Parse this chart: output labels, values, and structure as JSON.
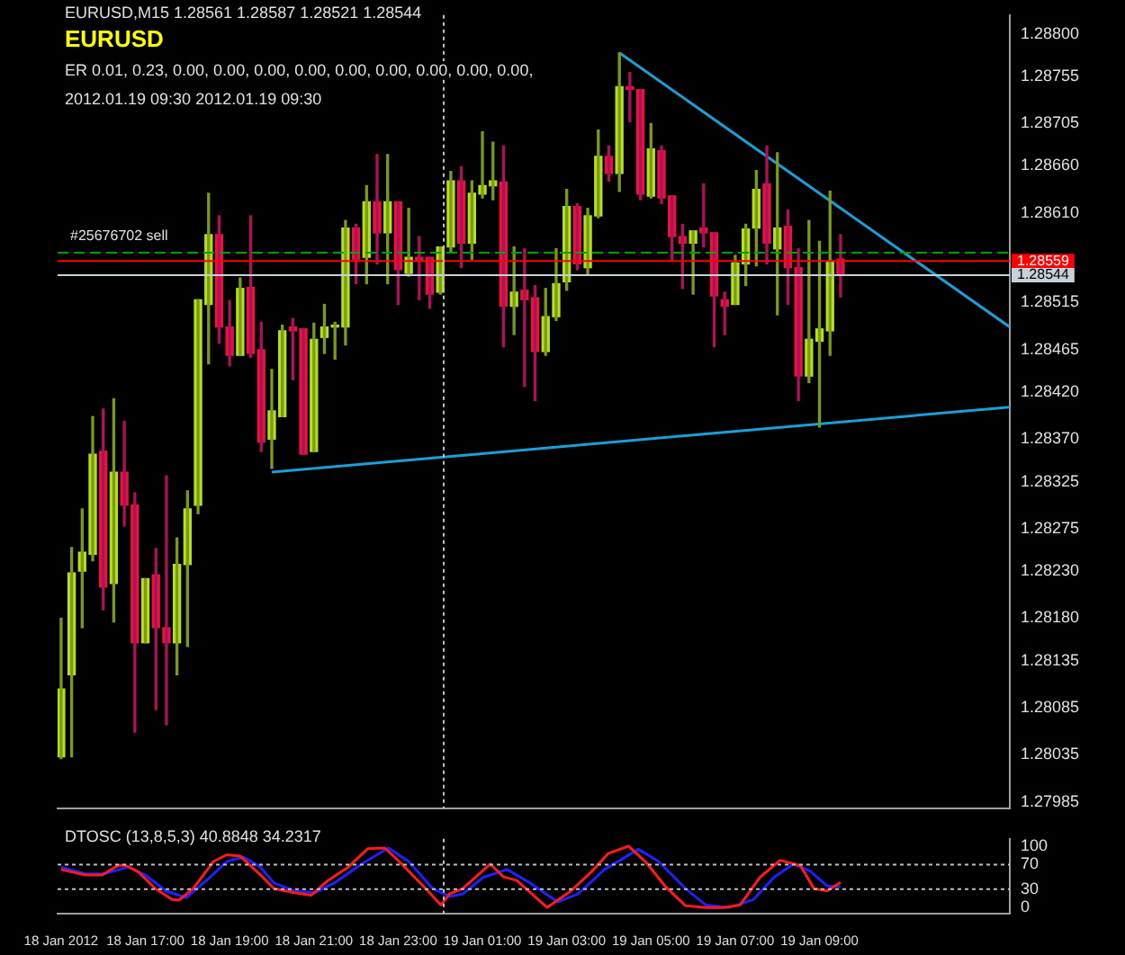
{
  "chart_data": [
    {
      "type": "candlestick",
      "title": "EURUSD,M15  1.28561 1.28587 1.28521 1.28544",
      "annotations": [
        "EURUSD",
        "ER 0.01, 0.23, 0.00, 0.00, 0.00, 0.00, 0.00, 0.00, 0.00, 0.00, 0.00,",
        "2012.01.19 09:30   2012.01.19 09:30"
      ],
      "x": [
        "2012-01-18T15:00",
        "2012-01-18T15:15",
        "2012-01-18T15:30",
        "2012-01-18T15:45",
        "2012-01-18T16:00",
        "2012-01-18T16:15",
        "2012-01-18T16:30",
        "2012-01-18T16:45",
        "2012-01-18T17:00",
        "2012-01-18T17:15",
        "2012-01-18T17:30",
        "2012-01-18T17:45",
        "2012-01-18T18:00",
        "2012-01-18T18:15",
        "2012-01-18T18:30",
        "2012-01-18T18:45",
        "2012-01-18T19:00",
        "2012-01-18T19:15",
        "2012-01-18T19:30",
        "2012-01-18T19:45",
        "2012-01-18T20:00",
        "2012-01-18T20:15",
        "2012-01-18T20:30",
        "2012-01-18T20:45",
        "2012-01-18T21:00",
        "2012-01-18T21:15",
        "2012-01-18T21:30",
        "2012-01-18T21:45",
        "2012-01-18T22:00",
        "2012-01-18T22:15",
        "2012-01-18T22:30",
        "2012-01-18T22:45",
        "2012-01-18T23:00",
        "2012-01-18T23:15",
        "2012-01-18T23:30",
        "2012-01-18T23:45",
        "2012-01-19T00:00",
        "2012-01-19T00:15",
        "2012-01-19T00:30",
        "2012-01-19T00:45",
        "2012-01-19T01:00",
        "2012-01-19T01:15",
        "2012-01-19T01:30",
        "2012-01-19T01:45",
        "2012-01-19T02:00",
        "2012-01-19T02:15",
        "2012-01-19T02:30",
        "2012-01-19T02:45",
        "2012-01-19T03:00",
        "2012-01-19T03:15",
        "2012-01-19T03:30",
        "2012-01-19T03:45",
        "2012-01-19T04:00",
        "2012-01-19T04:15",
        "2012-01-19T04:30",
        "2012-01-19T04:45",
        "2012-01-19T05:00",
        "2012-01-19T05:15",
        "2012-01-19T05:30",
        "2012-01-19T05:45",
        "2012-01-19T06:00",
        "2012-01-19T06:15",
        "2012-01-19T06:30",
        "2012-01-19T06:45",
        "2012-01-19T07:00",
        "2012-01-19T07:15",
        "2012-01-19T07:30",
        "2012-01-19T07:45",
        "2012-01-19T08:00",
        "2012-01-19T08:15",
        "2012-01-19T08:30",
        "2012-01-19T08:45",
        "2012-01-19T09:00",
        "2012-01-19T09:15",
        "2012-01-19T09:30"
      ],
      "ohlc": [
        [
          1.28033,
          1.2818,
          1.28031,
          1.28105
        ],
        [
          1.2812,
          1.28255,
          1.28033,
          1.28228
        ],
        [
          1.2823,
          1.28296,
          1.2817,
          1.2825
        ],
        [
          1.28248,
          1.28394,
          1.28241,
          1.28354
        ],
        [
          1.28357,
          1.28402,
          1.28189,
          1.28213
        ],
        [
          1.28217,
          1.28413,
          1.28176,
          1.28335
        ],
        [
          1.28335,
          1.28389,
          1.28278,
          1.283
        ],
        [
          1.283,
          1.28313,
          1.28059,
          1.28154
        ],
        [
          1.28154,
          1.28222,
          1.28154,
          1.28222
        ],
        [
          1.28226,
          1.28254,
          1.28083,
          1.2817
        ],
        [
          1.2817,
          1.28331,
          1.28067,
          1.28154
        ],
        [
          1.28154,
          1.28265,
          1.2812,
          1.28237
        ],
        [
          1.28237,
          1.28315,
          1.2815,
          1.28296
        ],
        [
          1.283,
          1.28518,
          1.28291,
          1.28518
        ],
        [
          1.28513,
          1.28631,
          1.2845,
          1.28587
        ],
        [
          1.28587,
          1.28607,
          1.28472,
          1.28489
        ],
        [
          1.28489,
          1.28517,
          1.28448,
          1.28459
        ],
        [
          1.28459,
          1.28541,
          1.28459,
          1.2853
        ],
        [
          1.28531,
          1.28607,
          1.28457,
          1.28461
        ],
        [
          1.28465,
          1.28494,
          1.28357,
          1.28367
        ],
        [
          1.2837,
          1.28444,
          1.28339,
          1.284
        ],
        [
          1.28394,
          1.28491,
          1.28394,
          1.28485
        ],
        [
          1.28489,
          1.28498,
          1.28433,
          1.28485
        ],
        [
          1.28487,
          1.28487,
          1.28354,
          1.28354
        ],
        [
          1.28357,
          1.28493,
          1.28357,
          1.28476
        ],
        [
          1.28478,
          1.28513,
          1.28461,
          1.28489
        ],
        [
          1.28489,
          1.28494,
          1.28455,
          1.28491
        ],
        [
          1.28489,
          1.28602,
          1.2847,
          1.28594
        ],
        [
          1.28594,
          1.28598,
          1.28535,
          1.28561
        ],
        [
          1.28563,
          1.28639,
          1.28535,
          1.28622
        ],
        [
          1.28622,
          1.28672,
          1.28556,
          1.28589
        ],
        [
          1.28589,
          1.28672,
          1.28535,
          1.28622
        ],
        [
          1.28622,
          1.28622,
          1.28513,
          1.2855
        ],
        [
          1.28546,
          1.28615,
          1.28543,
          1.28563
        ],
        [
          1.28563,
          1.28585,
          1.28518,
          1.28559
        ],
        [
          1.28563,
          1.28563,
          1.28509,
          1.28524
        ],
        [
          1.28526,
          1.28574,
          1.28524,
          1.28574
        ],
        [
          1.28574,
          1.28654,
          1.28568,
          1.28644
        ],
        [
          1.28644,
          1.28659,
          1.28552,
          1.28578
        ],
        [
          1.28578,
          1.28644,
          1.28561,
          1.28631
        ],
        [
          1.2863,
          1.28696,
          1.28626,
          1.28639
        ],
        [
          1.28639,
          1.28685,
          1.28624,
          1.28644
        ],
        [
          1.28643,
          1.28681,
          1.28468,
          1.28511
        ],
        [
          1.28511,
          1.28574,
          1.28481,
          1.28526
        ],
        [
          1.28528,
          1.28572,
          1.28426,
          1.28518
        ],
        [
          1.2852,
          1.28533,
          1.28411,
          1.28463
        ],
        [
          1.28463,
          1.2853,
          1.28459,
          1.285
        ],
        [
          1.285,
          1.28572,
          1.28496,
          1.28535
        ],
        [
          1.28537,
          1.28635,
          1.28528,
          1.28617
        ],
        [
          1.28617,
          1.2862,
          1.2855,
          1.28556
        ],
        [
          1.28552,
          1.28615,
          1.28544,
          1.28607
        ],
        [
          1.28607,
          1.28698,
          1.28605,
          1.2867
        ],
        [
          1.2867,
          1.28681,
          1.28644,
          1.28652
        ],
        [
          1.28652,
          1.2878,
          1.28633,
          1.28744
        ],
        [
          1.28744,
          1.28759,
          1.28707,
          1.28741
        ],
        [
          1.28741,
          1.28741,
          1.28624,
          1.2863
        ],
        [
          1.28628,
          1.28705,
          1.28626,
          1.28678
        ],
        [
          1.28676,
          1.28681,
          1.2862,
          1.28626
        ],
        [
          1.28628,
          1.28628,
          1.28559,
          1.28585
        ],
        [
          1.28585,
          1.28598,
          1.2853,
          1.28578
        ],
        [
          1.28578,
          1.28591,
          1.28524,
          1.28591
        ],
        [
          1.28594,
          1.28641,
          1.28574,
          1.28589
        ],
        [
          1.28589,
          1.28589,
          1.28468,
          1.28522
        ],
        [
          1.28518,
          1.28526,
          1.28481,
          1.28511
        ],
        [
          1.28513,
          1.28565,
          1.28513,
          1.28557
        ],
        [
          1.28556,
          1.28598,
          1.28533,
          1.28593
        ],
        [
          1.28594,
          1.28655,
          1.28554,
          1.28635
        ],
        [
          1.28641,
          1.28681,
          1.28556,
          1.28578
        ],
        [
          1.28572,
          1.28674,
          1.28502,
          1.28594
        ],
        [
          1.28596,
          1.28613,
          1.28513,
          1.28552
        ],
        [
          1.28552,
          1.28572,
          1.28411,
          1.28437
        ],
        [
          1.28437,
          1.28602,
          1.2843,
          1.28476
        ],
        [
          1.28474,
          1.2858,
          1.28383,
          1.28487
        ],
        [
          1.28485,
          1.28633,
          1.28459,
          1.28559
        ],
        [
          1.28561,
          1.28587,
          1.28521,
          1.28544
        ]
      ],
      "series": [
        {
          "type": "line",
          "color": "#1aa0d8",
          "x": [
            "2012-01-19T04:15",
            "2012-01-19T13:31"
          ],
          "values": [
            1.2878,
            1.28489
          ]
        },
        {
          "type": "line",
          "color": "#1aa0d8",
          "x": [
            "2012-01-18T20:00",
            "2012-01-19T13:31"
          ],
          "values": [
            1.28335,
            1.28404
          ]
        }
      ],
      "xlim": [
        "2012-01-18T14:55",
        "2012-01-19T13:31"
      ],
      "ylim": [
        1.27978,
        1.2882
      ],
      "yticks": [
        {
          "value": 1.288,
          "label": "1.28800"
        },
        {
          "value": 1.28755,
          "label": "1.28755"
        },
        {
          "value": 1.28705,
          "label": "1.28705"
        },
        {
          "value": 1.2866,
          "label": "1.28660"
        },
        {
          "value": 1.2861,
          "label": "1.28610"
        },
        {
          "value": 1.28515,
          "label": "1.28515"
        },
        {
          "value": 1.28465,
          "label": "1.28465"
        },
        {
          "value": 1.2842,
          "label": "1.28420"
        },
        {
          "value": 1.2837,
          "label": "1.28370"
        },
        {
          "value": 1.28325,
          "label": "1.28325"
        },
        {
          "value": 1.28275,
          "label": "1.28275"
        },
        {
          "value": 1.2823,
          "label": "1.28230"
        },
        {
          "value": 1.2818,
          "label": "1.28180"
        },
        {
          "value": 1.28135,
          "label": "1.28135"
        },
        {
          "value": 1.28085,
          "label": "1.28085"
        },
        {
          "value": 1.28035,
          "label": "1.28035"
        },
        {
          "value": 1.27985,
          "label": "1.27985"
        }
      ],
      "ref_lines": [
        {
          "axis": "y",
          "value": 1.28568,
          "label": "#25676702 sell",
          "color": "#00a000",
          "line_style": "dashed"
        },
        {
          "axis": "y",
          "value": 1.28559,
          "label": "1.28559",
          "color": "#ff0000",
          "line_style": "solid"
        },
        {
          "axis": "y",
          "value": 1.28544,
          "label": "1.28544",
          "color": "#c8d0d8",
          "line_style": "solid"
        },
        {
          "axis": "x",
          "value": "2012-01-19",
          "color": "#c0c0c0",
          "line_style": "dotted"
        }
      ],
      "tick_labels": "y",
      "marker": "none"
    },
    {
      "type": "line",
      "title": "DTOSC (13,8,5,3) 40.8848 34.2317",
      "series": [
        {
          "color": "#ff1a1a",
          "x": [
            "2012-01-18T15:00",
            "2012-01-18T15:34",
            "2012-01-18T15:58",
            "2012-01-18T16:22",
            "2012-01-18T16:31",
            "2012-01-18T16:50",
            "2012-01-18T17:14",
            "2012-01-18T17:38",
            "2012-01-18T17:48",
            "2012-01-18T18:08",
            "2012-01-18T18:37",
            "2012-01-18T18:56",
            "2012-01-18T19:15",
            "2012-01-18T19:44",
            "2012-01-18T20:03",
            "2012-01-18T20:32",
            "2012-01-18T20:56",
            "2012-01-18T21:20",
            "2012-01-18T21:49",
            "2012-01-18T22:17",
            "2012-01-18T22:41",
            "2012-01-18T23:05",
            "2012-01-18T23:39",
            "2012-01-19T00:01",
            "2012-01-19T00:13",
            "2012-01-19T00:32",
            "2012-01-19T01:11",
            "2012-01-19T01:30",
            "2012-01-19T01:49",
            "2012-01-19T02:32",
            "2012-01-19T03:06",
            "2012-01-19T03:35",
            "2012-01-19T03:59",
            "2012-01-19T04:28",
            "2012-01-19T04:52",
            "2012-01-19T05:20",
            "2012-01-19T05:49",
            "2012-01-19T06:18",
            "2012-01-19T06:43",
            "2012-01-19T07:07",
            "2012-01-19T07:35",
            "2012-01-19T08:04",
            "2012-01-19T08:33",
            "2012-01-19T08:52",
            "2012-01-19T09:11",
            "2012-01-19T09:30"
          ],
          "values": [
            62,
            53,
            53,
            69,
            69,
            58,
            31,
            13,
            12,
            31,
            75,
            86,
            84,
            53,
            31,
            24,
            20,
            44,
            66,
            96,
            97,
            71,
            31,
            4,
            22,
            31,
            71,
            50,
            44,
            0,
            27,
            58,
            88,
            100,
            75,
            35,
            3,
            0,
            0,
            4,
            49,
            77,
            68,
            31,
            27,
            41
          ]
        },
        {
          "color": "#2020ff",
          "x": [
            "2012-01-18T15:00",
            "2012-01-18T15:34",
            "2012-01-18T16:02",
            "2012-01-18T16:36",
            "2012-01-18T17:00",
            "2012-01-18T17:29",
            "2012-01-18T17:58",
            "2012-01-18T18:27",
            "2012-01-18T18:56",
            "2012-01-18T19:20",
            "2012-01-18T19:44",
            "2012-01-18T20:03",
            "2012-01-18T20:32",
            "2012-01-18T21:01",
            "2012-01-18T21:29",
            "2012-01-18T22:08",
            "2012-01-18T22:46",
            "2012-01-18T23:15",
            "2012-01-18T23:49",
            "2012-01-19T00:13",
            "2012-01-19T00:32",
            "2012-01-19T01:01",
            "2012-01-19T01:35",
            "2012-01-19T02:08",
            "2012-01-19T02:47",
            "2012-01-19T03:16",
            "2012-01-19T03:54",
            "2012-01-19T04:42",
            "2012-01-19T05:11",
            "2012-01-19T05:49",
            "2012-01-19T06:18",
            "2012-01-19T06:52",
            "2012-01-19T07:26",
            "2012-01-19T07:55",
            "2012-01-19T08:23",
            "2012-01-19T08:47",
            "2012-01-19T09:11",
            "2012-01-19T09:30"
          ],
          "values": [
            66,
            55,
            55,
            66,
            53,
            27,
            16,
            44,
            75,
            82,
            66,
            40,
            27,
            24,
            40,
            71,
            97,
            75,
            31,
            18,
            22,
            49,
            62,
            40,
            9,
            22,
            62,
            95,
            75,
            31,
            4,
            0,
            13,
            49,
            71,
            59,
            35,
            34
          ]
        }
      ],
      "xlim": [
        "2012-01-18T14:55",
        "2012-01-19T13:31"
      ],
      "xticks": [
        {
          "value": "2012-01-18T15:00",
          "label": "18 Jan 2012"
        },
        {
          "value": "2012-01-18T17:00",
          "label": "18 Jan 17:00"
        },
        {
          "value": "2012-01-18T19:00",
          "label": "18 Jan 19:00"
        },
        {
          "value": "2012-01-18T21:00",
          "label": "18 Jan 21:00"
        },
        {
          "value": "2012-01-18T23:00",
          "label": "18 Jan 23:00"
        },
        {
          "value": "2012-01-19T01:00",
          "label": "19 Jan 01:00"
        },
        {
          "value": "2012-01-19T03:00",
          "label": "19 Jan 03:00"
        },
        {
          "value": "2012-01-19T05:00",
          "label": "19 Jan 05:00"
        },
        {
          "value": "2012-01-19T07:00",
          "label": "19 Jan 07:00"
        },
        {
          "value": "2012-01-19T09:00",
          "label": "19 Jan 09:00"
        }
      ],
      "ylim": [
        -10,
        112
      ],
      "yticks": [
        0,
        30,
        70,
        100
      ],
      "ref_lines": [
        {
          "axis": "y",
          "value": 30,
          "color": "#c0c0c0",
          "line_style": "dotted"
        },
        {
          "axis": "y",
          "value": 70,
          "color": "#c0c0c0",
          "line_style": "dotted"
        },
        {
          "axis": "x",
          "value": "2012-01-19",
          "color": "#c0c0c0",
          "line_style": "dotted"
        }
      ],
      "marker": "none",
      "line_style": "solid"
    }
  ]
}
